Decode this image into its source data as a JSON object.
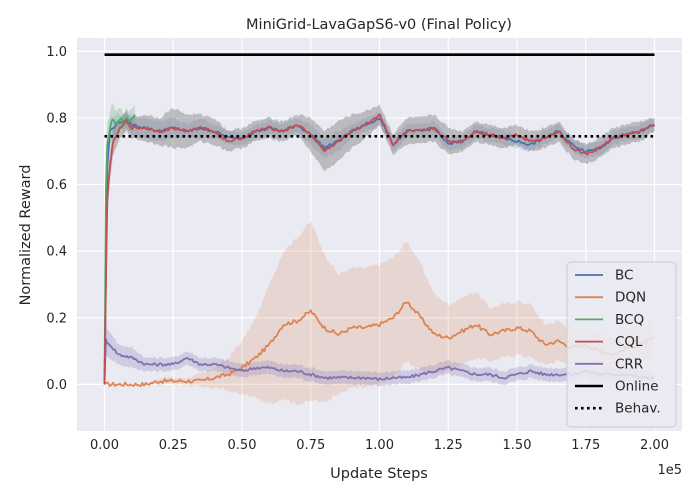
{
  "chart_data": {
    "type": "line",
    "title": "MiniGrid-LavaGapS6-v0 (Final Policy)",
    "xlabel": "Update Steps",
    "ylabel": "Normalized Reward",
    "x_offset_label": "1e5",
    "xlim": [
      -0.1,
      2.1
    ],
    "ylim": [
      -0.14,
      1.04
    ],
    "x_unit_scale": 100000,
    "xticks": [
      0.0,
      0.25,
      0.5,
      0.75,
      1.0,
      1.25,
      1.5,
      1.75,
      2.0
    ],
    "xtick_labels": [
      "0.00",
      "0.25",
      "0.50",
      "0.75",
      "1.00",
      "1.25",
      "1.50",
      "1.75",
      "2.00"
    ],
    "yticks": [
      0.0,
      0.2,
      0.4,
      0.6,
      0.8,
      1.0
    ],
    "ytick_labels": [
      "0.0",
      "0.2",
      "0.4",
      "0.6",
      "0.8",
      "1.0"
    ],
    "grid": true,
    "legend_position": "lower-right",
    "series": [
      {
        "name": "BC",
        "color": "#4c72b0",
        "style": "solid",
        "x": [
          0,
          0.01,
          0.02,
          0.04,
          0.06,
          0.08,
          0.1,
          0.15,
          0.2,
          0.25,
          0.3,
          0.35,
          0.4,
          0.45,
          0.5,
          0.55,
          0.6,
          0.65,
          0.7,
          0.75,
          0.8,
          0.85,
          0.9,
          0.95,
          1.0,
          1.05,
          1.1,
          1.15,
          1.2,
          1.25,
          1.3,
          1.35,
          1.4,
          1.45,
          1.5,
          1.55,
          1.6,
          1.65,
          1.7,
          1.75,
          1.8,
          1.85,
          1.9,
          1.95,
          2.0
        ],
        "y": [
          0.0,
          0.65,
          0.76,
          0.78,
          0.79,
          0.79,
          0.78,
          0.77,
          0.76,
          0.77,
          0.76,
          0.77,
          0.76,
          0.74,
          0.74,
          0.76,
          0.77,
          0.76,
          0.78,
          0.75,
          0.71,
          0.73,
          0.76,
          0.78,
          0.8,
          0.72,
          0.76,
          0.76,
          0.77,
          0.72,
          0.73,
          0.76,
          0.75,
          0.74,
          0.73,
          0.72,
          0.74,
          0.76,
          0.72,
          0.7,
          0.71,
          0.74,
          0.75,
          0.76,
          0.78
        ],
        "band": [
          0.0,
          0.06,
          0.04,
          0.03,
          0.02,
          0.02,
          0.03,
          0.03,
          0.03,
          0.03,
          0.02,
          0.03,
          0.02,
          0.02,
          0.02,
          0.02,
          0.02,
          0.02,
          0.02,
          0.03,
          0.03,
          0.03,
          0.02,
          0.02,
          0.02,
          0.02,
          0.02,
          0.02,
          0.02,
          0.02,
          0.02,
          0.02,
          0.02,
          0.02,
          0.02,
          0.02,
          0.02,
          0.02,
          0.02,
          0.02,
          0.02,
          0.02,
          0.02,
          0.02,
          0.02
        ]
      },
      {
        "name": "DQN",
        "color": "#dd8452",
        "style": "solid",
        "x": [
          0,
          0.05,
          0.1,
          0.15,
          0.2,
          0.25,
          0.3,
          0.35,
          0.4,
          0.45,
          0.5,
          0.55,
          0.6,
          0.65,
          0.7,
          0.75,
          0.8,
          0.85,
          0.9,
          0.95,
          1.0,
          1.05,
          1.1,
          1.15,
          1.2,
          1.25,
          1.3,
          1.35,
          1.4,
          1.45,
          1.5,
          1.55,
          1.6,
          1.65,
          1.7,
          1.75,
          1.8,
          1.85,
          1.9,
          1.95,
          2.0
        ],
        "y": [
          0.0,
          0.0,
          0.0,
          0.0,
          0.01,
          0.01,
          0.01,
          0.01,
          0.02,
          0.03,
          0.05,
          0.08,
          0.12,
          0.18,
          0.19,
          0.22,
          0.17,
          0.15,
          0.17,
          0.17,
          0.18,
          0.2,
          0.25,
          0.2,
          0.15,
          0.14,
          0.16,
          0.18,
          0.15,
          0.16,
          0.17,
          0.16,
          0.12,
          0.13,
          0.11,
          0.12,
          0.1,
          0.09,
          0.11,
          0.12,
          0.14
        ],
        "band": [
          0.0,
          0.0,
          0.0,
          0.0,
          0.01,
          0.01,
          0.01,
          0.02,
          0.03,
          0.05,
          0.08,
          0.12,
          0.18,
          0.22,
          0.25,
          0.27,
          0.22,
          0.18,
          0.18,
          0.18,
          0.18,
          0.18,
          0.18,
          0.16,
          0.12,
          0.1,
          0.1,
          0.1,
          0.08,
          0.08,
          0.08,
          0.08,
          0.06,
          0.06,
          0.05,
          0.05,
          0.05,
          0.05,
          0.05,
          0.05,
          0.05
        ]
      },
      {
        "name": "BCQ",
        "color": "#55a868",
        "style": "solid",
        "x": [
          0,
          0.005,
          0.01,
          0.02,
          0.03,
          0.04,
          0.05,
          0.06,
          0.07,
          0.08,
          0.09,
          0.1,
          0.11
        ],
        "y": [
          0.0,
          0.58,
          0.72,
          0.77,
          0.8,
          0.78,
          0.79,
          0.8,
          0.78,
          0.8,
          0.79,
          0.8,
          0.81
        ],
        "band": [
          0.0,
          0.08,
          0.06,
          0.05,
          0.05,
          0.04,
          0.04,
          0.03,
          0.03,
          0.03,
          0.03,
          0.03,
          0.03
        ]
      },
      {
        "name": "CQL",
        "color": "#c44e52",
        "style": "solid",
        "x": [
          0,
          0.005,
          0.01,
          0.02,
          0.03,
          0.05,
          0.08,
          0.1,
          0.15,
          0.2,
          0.25,
          0.3,
          0.35,
          0.4,
          0.45,
          0.5,
          0.55,
          0.6,
          0.65,
          0.7,
          0.75,
          0.8,
          0.85,
          0.9,
          0.95,
          1.0,
          1.05,
          1.1,
          1.15,
          1.2,
          1.25,
          1.3,
          1.35,
          1.4,
          1.45,
          1.5,
          1.55,
          1.6,
          1.65,
          1.7,
          1.75,
          1.8,
          1.85,
          1.9,
          1.95,
          2.0
        ],
        "y": [
          0.0,
          0.3,
          0.55,
          0.66,
          0.72,
          0.76,
          0.79,
          0.77,
          0.77,
          0.76,
          0.77,
          0.76,
          0.77,
          0.76,
          0.73,
          0.74,
          0.76,
          0.77,
          0.76,
          0.78,
          0.75,
          0.7,
          0.73,
          0.76,
          0.78,
          0.81,
          0.72,
          0.76,
          0.76,
          0.77,
          0.73,
          0.73,
          0.76,
          0.75,
          0.74,
          0.75,
          0.73,
          0.74,
          0.76,
          0.71,
          0.69,
          0.71,
          0.74,
          0.75,
          0.76,
          0.78
        ],
        "band": [
          0.0,
          0.05,
          0.05,
          0.04,
          0.04,
          0.03,
          0.03,
          0.03,
          0.04,
          0.04,
          0.06,
          0.05,
          0.04,
          0.04,
          0.03,
          0.03,
          0.03,
          0.03,
          0.03,
          0.03,
          0.05,
          0.06,
          0.06,
          0.05,
          0.04,
          0.03,
          0.03,
          0.04,
          0.04,
          0.04,
          0.04,
          0.03,
          0.03,
          0.03,
          0.03,
          0.03,
          0.03,
          0.03,
          0.03,
          0.03,
          0.03,
          0.03,
          0.03,
          0.03,
          0.03,
          0.02
        ]
      },
      {
        "name": "CRR",
        "color": "#8172b2",
        "style": "solid",
        "x": [
          0,
          0.005,
          0.01,
          0.02,
          0.05,
          0.1,
          0.15,
          0.2,
          0.25,
          0.3,
          0.35,
          0.4,
          0.45,
          0.5,
          0.55,
          0.6,
          0.65,
          0.7,
          0.75,
          0.8,
          0.85,
          0.9,
          0.95,
          1.0,
          1.05,
          1.1,
          1.15,
          1.2,
          1.25,
          1.3,
          1.35,
          1.4,
          1.45,
          1.5,
          1.55,
          1.6,
          1.65,
          1.7,
          1.75,
          1.8,
          1.85,
          1.9,
          1.95,
          2.0
        ],
        "y": [
          0.0,
          0.14,
          0.12,
          0.12,
          0.09,
          0.08,
          0.06,
          0.06,
          0.06,
          0.08,
          0.06,
          0.06,
          0.05,
          0.04,
          0.05,
          0.05,
          0.04,
          0.04,
          0.03,
          0.02,
          0.02,
          0.02,
          0.02,
          0.015,
          0.02,
          0.02,
          0.03,
          0.04,
          0.05,
          0.04,
          0.03,
          0.03,
          0.02,
          0.03,
          0.04,
          0.03,
          0.03,
          0.03,
          0.04,
          0.03,
          0.03,
          0.03,
          0.02,
          0.02
        ],
        "band": [
          0.0,
          0.05,
          0.04,
          0.04,
          0.03,
          0.03,
          0.02,
          0.02,
          0.02,
          0.02,
          0.02,
          0.02,
          0.02,
          0.02,
          0.02,
          0.02,
          0.02,
          0.02,
          0.02,
          0.02,
          0.02,
          0.02,
          0.02,
          0.02,
          0.02,
          0.02,
          0.02,
          0.02,
          0.02,
          0.02,
          0.02,
          0.02,
          0.02,
          0.02,
          0.02,
          0.02,
          0.02,
          0.02,
          0.02,
          0.02,
          0.02,
          0.02,
          0.02,
          0.02
        ]
      },
      {
        "name": "Online",
        "color": "#000000",
        "style": "solid",
        "x": [
          0,
          2.0
        ],
        "y": [
          0.99,
          0.99
        ]
      },
      {
        "name": "Behav.",
        "color": "#000000",
        "style": "dotted",
        "x": [
          0,
          2.0
        ],
        "y": [
          0.745,
          0.745
        ]
      }
    ]
  }
}
